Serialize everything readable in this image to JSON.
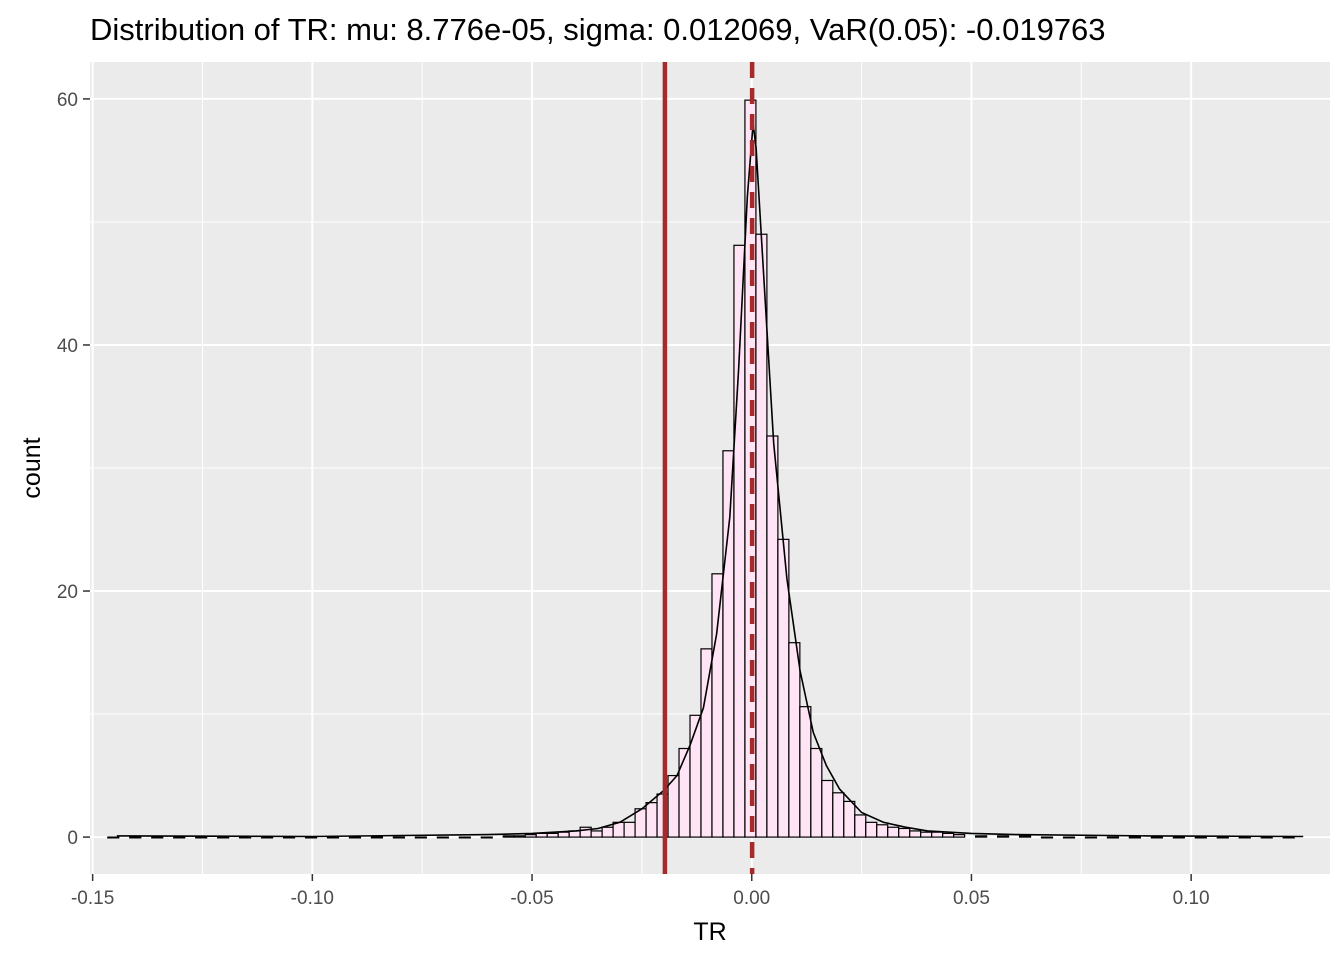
{
  "chart_data": {
    "type": "bar",
    "title": "Distribution of TR: mu: 8.776e-05, sigma: 0.012069, VaR(0.05): -0.019763",
    "xlabel": "TR",
    "ylabel": "count",
    "xlim": [
      -0.1506,
      0.1316
    ],
    "ylim": [
      -3,
      63
    ],
    "x_ticks": [
      -0.15,
      -0.1,
      -0.05,
      0.0,
      0.05,
      0.1
    ],
    "x_tick_labels": [
      "-0.15",
      "-0.10",
      "-0.05",
      "0.00",
      "0.05",
      "0.10"
    ],
    "y_ticks": [
      0,
      20,
      40,
      60
    ],
    "y_tick_labels": [
      "0",
      "20",
      "40",
      "60"
    ],
    "grid": true,
    "panel_background": "#ebebeb",
    "bar_fill": "#ffe4f5",
    "bar_stroke": "#000000",
    "histogram": {
      "bins": [
        {
          "x": -0.1453,
          "count": 0
        },
        {
          "x": -0.1403,
          "count": 0
        },
        {
          "x": -0.1353,
          "count": 0
        },
        {
          "x": -0.1303,
          "count": 0
        },
        {
          "x": -0.1253,
          "count": 0
        },
        {
          "x": -0.1203,
          "count": 0
        },
        {
          "x": -0.1153,
          "count": 0
        },
        {
          "x": -0.1103,
          "count": 0
        },
        {
          "x": -0.1053,
          "count": 0
        },
        {
          "x": -0.1003,
          "count": 0
        },
        {
          "x": -0.0953,
          "count": 0
        },
        {
          "x": -0.0903,
          "count": 0
        },
        {
          "x": -0.0853,
          "count": 0
        },
        {
          "x": -0.0803,
          "count": 0
        },
        {
          "x": -0.0753,
          "count": 0
        },
        {
          "x": -0.0703,
          "count": 0
        },
        {
          "x": -0.0653,
          "count": 0
        },
        {
          "x": -0.0603,
          "count": 0
        },
        {
          "x": -0.0553,
          "count": 0.1
        },
        {
          "x": -0.0528,
          "count": 0.1
        },
        {
          "x": -0.0503,
          "count": 0.2
        },
        {
          "x": -0.0478,
          "count": 0.3
        },
        {
          "x": -0.0453,
          "count": 0.3
        },
        {
          "x": -0.0428,
          "count": 0.4
        },
        {
          "x": -0.0403,
          "count": 0.5
        },
        {
          "x": -0.0378,
          "count": 0.8
        },
        {
          "x": -0.0353,
          "count": 0.5
        },
        {
          "x": -0.0328,
          "count": 0.8
        },
        {
          "x": -0.0303,
          "count": 1.2
        },
        {
          "x": -0.0278,
          "count": 1.2
        },
        {
          "x": -0.0253,
          "count": 2.3
        },
        {
          "x": -0.0228,
          "count": 2.8
        },
        {
          "x": -0.0203,
          "count": 3.5
        },
        {
          "x": -0.0178,
          "count": 5.0
        },
        {
          "x": -0.0153,
          "count": 7.2
        },
        {
          "x": -0.0128,
          "count": 9.9
        },
        {
          "x": -0.0103,
          "count": 15.3
        },
        {
          "x": -0.0078,
          "count": 21.4
        },
        {
          "x": -0.0053,
          "count": 31.4
        },
        {
          "x": -0.0028,
          "count": 48.1
        },
        {
          "x": -0.0003,
          "count": 59.9
        },
        {
          "x": 0.0022,
          "count": 49.0
        },
        {
          "x": 0.0047,
          "count": 32.6
        },
        {
          "x": 0.0072,
          "count": 24.2
        },
        {
          "x": 0.0097,
          "count": 15.8
        },
        {
          "x": 0.0122,
          "count": 10.6
        },
        {
          "x": 0.0147,
          "count": 7.2
        },
        {
          "x": 0.0172,
          "count": 4.6
        },
        {
          "x": 0.0197,
          "count": 3.6
        },
        {
          "x": 0.0222,
          "count": 2.9
        },
        {
          "x": 0.0247,
          "count": 1.8
        },
        {
          "x": 0.0272,
          "count": 1.2
        },
        {
          "x": 0.0297,
          "count": 1.0
        },
        {
          "x": 0.0322,
          "count": 0.8
        },
        {
          "x": 0.0347,
          "count": 0.7
        },
        {
          "x": 0.0372,
          "count": 0.5
        },
        {
          "x": 0.0397,
          "count": 0.4
        },
        {
          "x": 0.0422,
          "count": 0.4
        },
        {
          "x": 0.0447,
          "count": 0.3
        },
        {
          "x": 0.0472,
          "count": 0.2
        },
        {
          "x": 0.0522,
          "count": 0.1
        },
        {
          "x": 0.0572,
          "count": 0.1
        },
        {
          "x": 0.0622,
          "count": 0.1
        },
        {
          "x": 0.0672,
          "count": 0
        },
        {
          "x": 0.0722,
          "count": 0
        },
        {
          "x": 0.0772,
          "count": 0
        },
        {
          "x": 0.0822,
          "count": 0
        },
        {
          "x": 0.0872,
          "count": 0
        },
        {
          "x": 0.0922,
          "count": 0
        },
        {
          "x": 0.0972,
          "count": 0
        },
        {
          "x": 0.1022,
          "count": 0
        },
        {
          "x": 0.1072,
          "count": 0
        },
        {
          "x": 0.1122,
          "count": 0
        },
        {
          "x": 0.1172,
          "count": 0
        },
        {
          "x": 0.1222,
          "count": 0
        }
      ],
      "bin_width": 0.0025
    },
    "density_curve": {
      "x": [
        -0.1445,
        -0.1,
        -0.06,
        -0.05,
        -0.04,
        -0.035,
        -0.03,
        -0.025,
        -0.02,
        -0.017,
        -0.014,
        -0.011,
        -0.008,
        -0.005,
        -0.003,
        -0.001,
        0.0003,
        0.001,
        0.003,
        0.005,
        0.008,
        0.011,
        0.014,
        0.017,
        0.02,
        0.025,
        0.03,
        0.035,
        0.04,
        0.05,
        0.06,
        0.09,
        0.1255
      ],
      "y": [
        0.1,
        0.05,
        0.2,
        0.3,
        0.5,
        0.7,
        1.2,
        2.3,
        3.8,
        5.0,
        7.5,
        10.5,
        16.5,
        26,
        38,
        52,
        58,
        56,
        44,
        32,
        21,
        13.5,
        8.5,
        5.8,
        3.9,
        2.0,
        1.2,
        0.8,
        0.5,
        0.3,
        0.2,
        0.1,
        0.05
      ]
    },
    "vlines": [
      {
        "x": -0.019763,
        "style": "solid",
        "color": "#a52a2a"
      },
      {
        "x": 8.78e-05,
        "style": "dashed",
        "color": "#a52a2a"
      }
    ]
  }
}
